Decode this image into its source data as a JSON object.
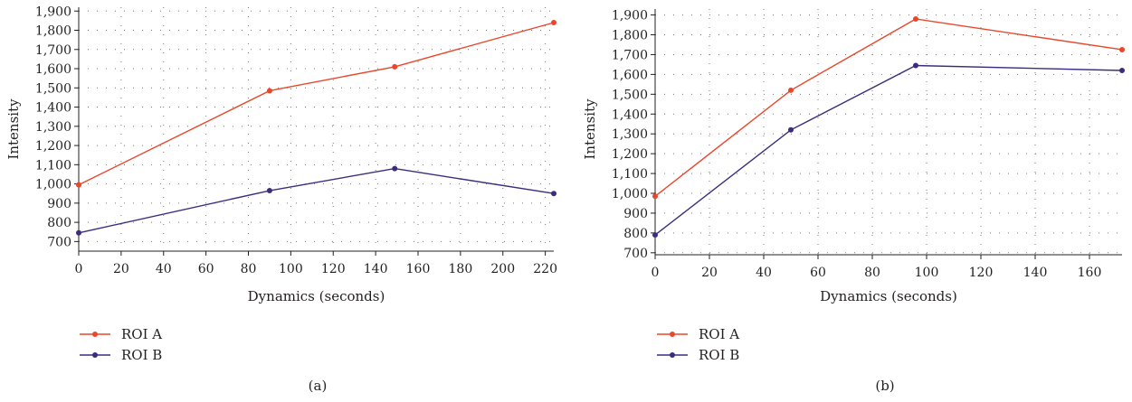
{
  "chart_data": [
    {
      "type": "line",
      "panel_label": "(a)",
      "xlabel": "Dynamics (seconds)",
      "ylabel": "Intensity",
      "xlim": [
        0,
        224
      ],
      "ylim": [
        650,
        1920
      ],
      "xticks": [
        0,
        20,
        40,
        60,
        80,
        100,
        120,
        140,
        160,
        180,
        200,
        220
      ],
      "yticks": [
        700,
        800,
        900,
        1000,
        1100,
        1200,
        1300,
        1400,
        1500,
        1600,
        1700,
        1800,
        1900
      ],
      "grid": "dotted",
      "legend_position": "bottom-left",
      "series": [
        {
          "name": "ROI A",
          "color": "#e8472b",
          "points": [
            [
              0,
              995
            ],
            [
              90,
              1485
            ],
            [
              149,
              1610
            ],
            [
              224,
              1840
            ]
          ]
        },
        {
          "name": "ROI B",
          "color": "#3a2d7e",
          "points": [
            [
              0,
              745
            ],
            [
              90,
              965
            ],
            [
              149,
              1080
            ],
            [
              224,
              950
            ]
          ]
        }
      ]
    },
    {
      "type": "line",
      "panel_label": "(b)",
      "xlabel": "Dynamics (seconds)",
      "ylabel": "Intensity",
      "xlim": [
        0,
        172
      ],
      "ylim": [
        690,
        1930
      ],
      "xticks": [
        0,
        20,
        40,
        60,
        80,
        100,
        120,
        140,
        160
      ],
      "yticks": [
        700,
        800,
        900,
        1000,
        1100,
        1200,
        1300,
        1400,
        1500,
        1600,
        1700,
        1800,
        1900
      ],
      "grid": "dotted",
      "legend_position": "bottom-left",
      "series": [
        {
          "name": "ROI A",
          "color": "#e8472b",
          "points": [
            [
              0,
              985
            ],
            [
              50,
              1520
            ],
            [
              96,
              1880
            ],
            [
              172,
              1725
            ]
          ]
        },
        {
          "name": "ROI B",
          "color": "#3a2d7e",
          "points": [
            [
              0,
              790
            ],
            [
              50,
              1320
            ],
            [
              96,
              1645
            ],
            [
              172,
              1620
            ]
          ]
        }
      ]
    }
  ]
}
